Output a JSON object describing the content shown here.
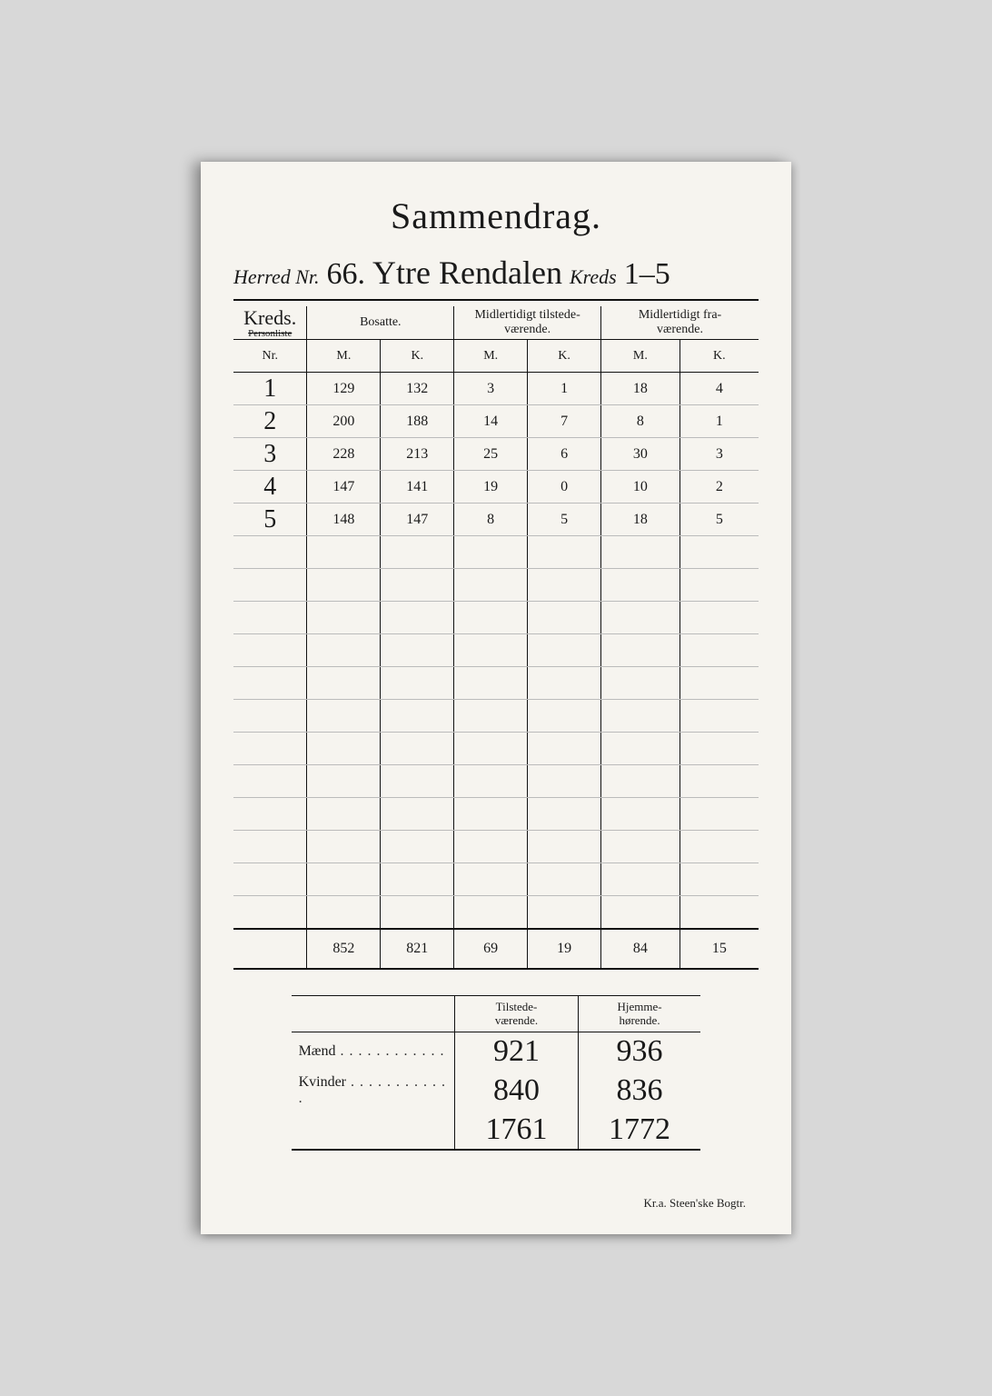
{
  "title": "Sammendrag.",
  "herred": {
    "label_left": "Herred  Nr.",
    "nr": "66.",
    "name": "Ytre Rendalen",
    "label_kreds": "Kreds",
    "kreds_range": "1–5"
  },
  "main_table": {
    "col_kreds": "Kreds.",
    "col_kreds_strike": "Personliste",
    "col_bosatte": "Bosatte.",
    "col_tilstede": "Midlertidigt tilstede-\nværende.",
    "col_fra": "Midlertidigt fra-\nværende.",
    "sub_nr": "Nr.",
    "sub_m": "M.",
    "sub_k": "K.",
    "rows": [
      {
        "nr": "1",
        "bm": "129",
        "bk": "132",
        "tm": "3",
        "tk": "1",
        "fm": "18",
        "fk": "4"
      },
      {
        "nr": "2",
        "bm": "200",
        "bk": "188",
        "tm": "14",
        "tk": "7",
        "fm": "8",
        "fk": "1"
      },
      {
        "nr": "3",
        "bm": "228",
        "bk": "213",
        "tm": "25",
        "tk": "6",
        "fm": "30",
        "fk": "3"
      },
      {
        "nr": "4",
        "bm": "147",
        "bk": "141",
        "tm": "19",
        "tk": "0",
        "fm": "10",
        "fk": "2"
      },
      {
        "nr": "5",
        "bm": "148",
        "bk": "147",
        "tm": "8",
        "tk": "5",
        "fm": "18",
        "fk": "5"
      }
    ],
    "blank_rows": 12,
    "totals": {
      "bm": "852",
      "bk": "821",
      "tm": "69",
      "tk": "19",
      "fm": "84",
      "fk": "15"
    }
  },
  "summary": {
    "col_tilstede": "Tilstede-\nværende.",
    "col_hjemme": "Hjemme-\nhørende.",
    "row_maend": "Mænd",
    "row_kvinder": "Kvinder",
    "maend_t": "921",
    "maend_h": "936",
    "kvinder_t": "840",
    "kvinder_h": "836",
    "tot_t": "1761",
    "tot_h": "1772"
  },
  "printer": "Kr.a.  Steen'ske Bogtr."
}
